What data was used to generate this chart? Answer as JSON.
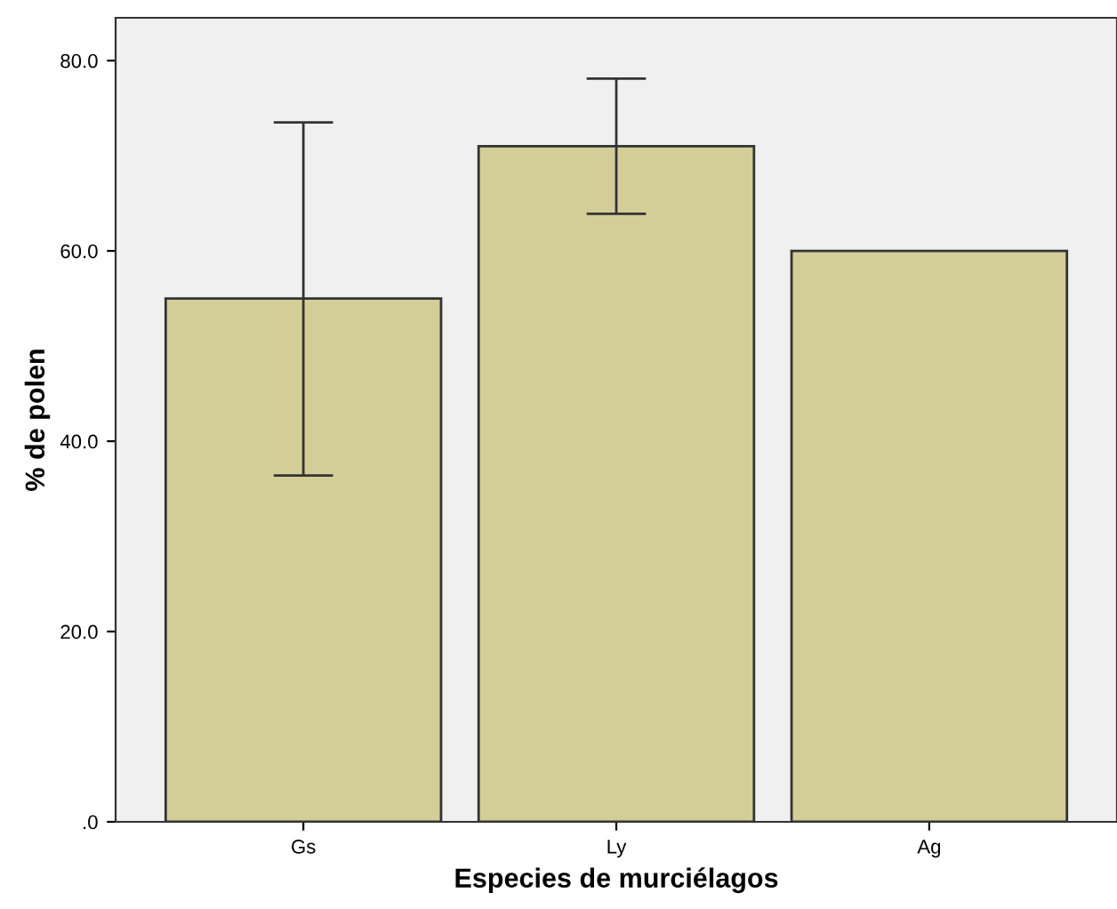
{
  "chart_data": {
    "type": "bar",
    "xlabel": "Especies de murciélagos",
    "ylabel": "% de polen",
    "categories": [
      "Gs",
      "Ly",
      "Ag"
    ],
    "values": [
      55.0,
      71.0,
      60.0
    ],
    "errors": [
      [
        36.4,
        73.5
      ],
      [
        63.9,
        78.1
      ],
      null
    ],
    "color": "#d3ce97",
    "ylim": [
      0,
      84.5
    ],
    "yticks": [
      {
        "value": 0,
        "label": ".0"
      },
      {
        "value": 20,
        "label": "20.0"
      },
      {
        "value": 40,
        "label": "40.0"
      },
      {
        "value": 60,
        "label": "60.0"
      },
      {
        "value": 80,
        "label": "80.0"
      }
    ],
    "grid": false,
    "legend": false
  }
}
